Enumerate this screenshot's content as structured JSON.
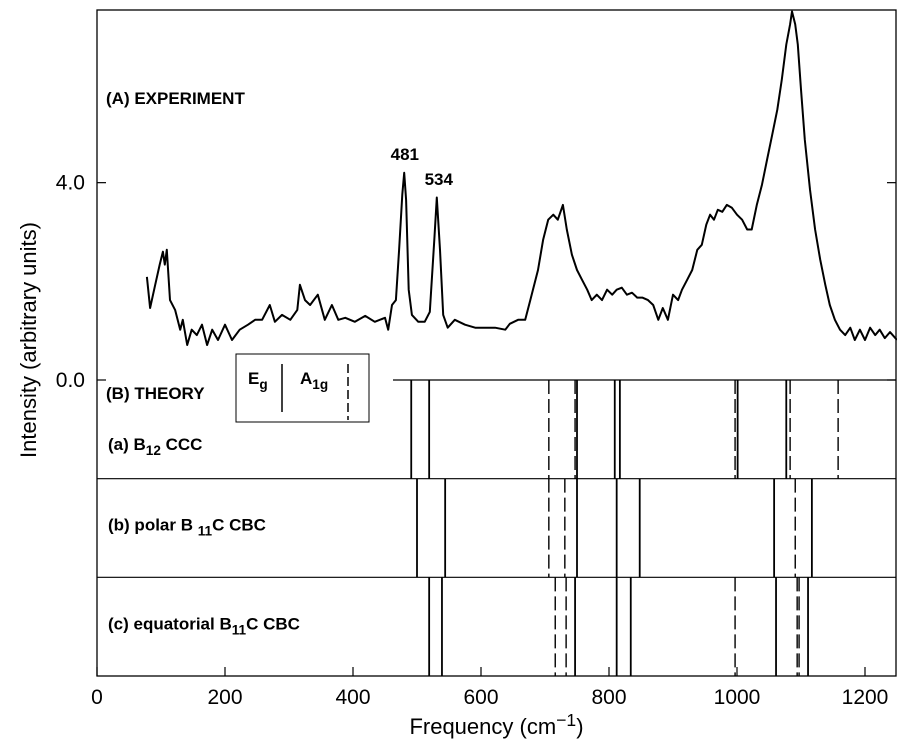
{
  "chart_data": {
    "type": "line",
    "xlabel": [
      {
        "text": "Frequency (cm"
      },
      {
        "text": "−1",
        "sup": true
      },
      {
        "text": ")"
      }
    ],
    "ylabel": [
      {
        "text": "Intensity (arbitrary units)"
      }
    ],
    "xlim": [
      0,
      1250
    ],
    "xticks": [
      0,
      200,
      400,
      600,
      800,
      1000,
      1200
    ],
    "ylim": [
      -6.0,
      7.5
    ],
    "yticks": [
      {
        "value": 0,
        "label": "0.0"
      },
      {
        "value": 4,
        "label": "4.0"
      }
    ],
    "color": "#000000",
    "experiment": {
      "label": [
        {
          "text": "(A) EXPERIMENT"
        }
      ],
      "x": [
        78,
        83,
        91,
        98,
        103,
        106,
        109,
        114,
        122,
        130,
        134,
        141,
        148,
        156,
        164,
        172,
        180,
        189,
        200,
        211,
        223,
        236,
        247,
        258,
        270,
        278,
        289,
        302,
        313,
        317,
        325,
        333,
        345,
        356,
        367,
        377,
        388,
        403,
        419,
        434,
        450,
        455,
        461,
        467,
        472,
        477,
        480,
        483,
        487,
        492,
        502,
        512,
        520,
        527,
        531,
        536,
        541,
        548,
        559,
        575,
        591,
        606,
        622,
        638,
        645,
        658,
        669,
        677,
        689,
        697,
        705,
        713,
        720,
        728,
        734,
        742,
        750,
        758,
        766,
        773,
        781,
        789,
        797,
        805,
        812,
        820,
        828,
        836,
        844,
        852,
        861,
        869,
        877,
        884,
        892,
        900,
        908,
        914,
        922,
        930,
        938,
        945,
        952,
        958,
        964,
        970,
        977,
        984,
        992,
        1000,
        1008,
        1016,
        1023,
        1031,
        1039,
        1047,
        1055,
        1063,
        1070,
        1077,
        1083,
        1086,
        1091,
        1095,
        1100,
        1106,
        1114,
        1122,
        1130,
        1138,
        1145,
        1153,
        1161,
        1169,
        1177,
        1184,
        1192,
        1200,
        1208,
        1216,
        1223,
        1231,
        1239,
        1250
      ],
      "values": [
        2.09,
        1.46,
        1.93,
        2.34,
        2.6,
        2.34,
        2.64,
        1.62,
        1.42,
        1.02,
        1.22,
        0.71,
        1.02,
        0.91,
        1.12,
        0.71,
        1.02,
        0.81,
        1.12,
        0.81,
        1.02,
        1.12,
        1.22,
        1.22,
        1.52,
        1.18,
        1.32,
        1.22,
        1.42,
        1.93,
        1.62,
        1.52,
        1.73,
        1.22,
        1.52,
        1.22,
        1.26,
        1.18,
        1.3,
        1.18,
        1.26,
        1.02,
        1.52,
        1.62,
        2.64,
        3.76,
        4.2,
        3.65,
        1.83,
        1.32,
        1.18,
        1.18,
        1.38,
        2.84,
        3.7,
        2.64,
        1.32,
        1.06,
        1.22,
        1.12,
        1.06,
        1.06,
        1.06,
        1.02,
        1.14,
        1.22,
        1.22,
        1.62,
        2.23,
        2.84,
        3.25,
        3.35,
        3.25,
        3.55,
        3.05,
        2.54,
        2.23,
        2.03,
        1.83,
        1.62,
        1.73,
        1.62,
        1.83,
        1.73,
        1.83,
        1.87,
        1.73,
        1.77,
        1.67,
        1.67,
        1.62,
        1.52,
        1.22,
        1.46,
        1.22,
        1.73,
        1.62,
        1.83,
        2.03,
        2.23,
        2.64,
        2.74,
        3.15,
        3.35,
        3.25,
        3.45,
        3.41,
        3.55,
        3.49,
        3.35,
        3.25,
        3.05,
        3.05,
        3.55,
        3.96,
        4.47,
        4.97,
        5.48,
        6.09,
        6.8,
        7.21,
        7.47,
        7.21,
        6.8,
        5.89,
        4.87,
        3.86,
        3.05,
        2.44,
        1.93,
        1.52,
        1.22,
        1.02,
        0.91,
        1.06,
        0.81,
        1.02,
        0.81,
        1.06,
        0.91,
        1.02,
        0.85,
        0.97,
        0.81
      ]
    },
    "peak_labels": [
      481,
      534
    ],
    "theory_label": [
      {
        "text": "(B) THEORY"
      }
    ],
    "legend": [
      {
        "name": [
          {
            "text": "E"
          },
          {
            "text": "g",
            "sub": true
          }
        ],
        "dashed": false
      },
      {
        "name": [
          {
            "text": "A"
          },
          {
            "text": "1g",
            "sub": true
          }
        ],
        "dashed": true
      }
    ],
    "theory": [
      {
        "label": [
          {
            "text": "(a) B"
          },
          {
            "text": "12",
            "sub": true
          },
          {
            "text": " CCC"
          }
        ],
        "Eg": [
          491,
          519,
          750,
          809,
          817,
          1001,
          1077
        ],
        "A1g": [
          706,
          747,
          997,
          1083,
          1158
        ]
      },
      {
        "label": [
          {
            "text": "(b) polar B "
          },
          {
            "text": "11",
            "sub": true
          },
          {
            "text": "C CBC"
          }
        ],
        "Eg": [
          500,
          544,
          750,
          812,
          848,
          1058,
          1117
        ],
        "A1g": [
          706,
          731,
          1091
        ]
      },
      {
        "label": [
          {
            "text": "(c) equatorial B"
          },
          {
            "text": "11",
            "sub": true
          },
          {
            "text": "C CBC"
          }
        ],
        "Eg": [
          519,
          539,
          747,
          812,
          834,
          1061,
          1111
        ],
        "A1g": [
          716,
          733,
          997,
          1094,
          1097
        ]
      }
    ]
  }
}
